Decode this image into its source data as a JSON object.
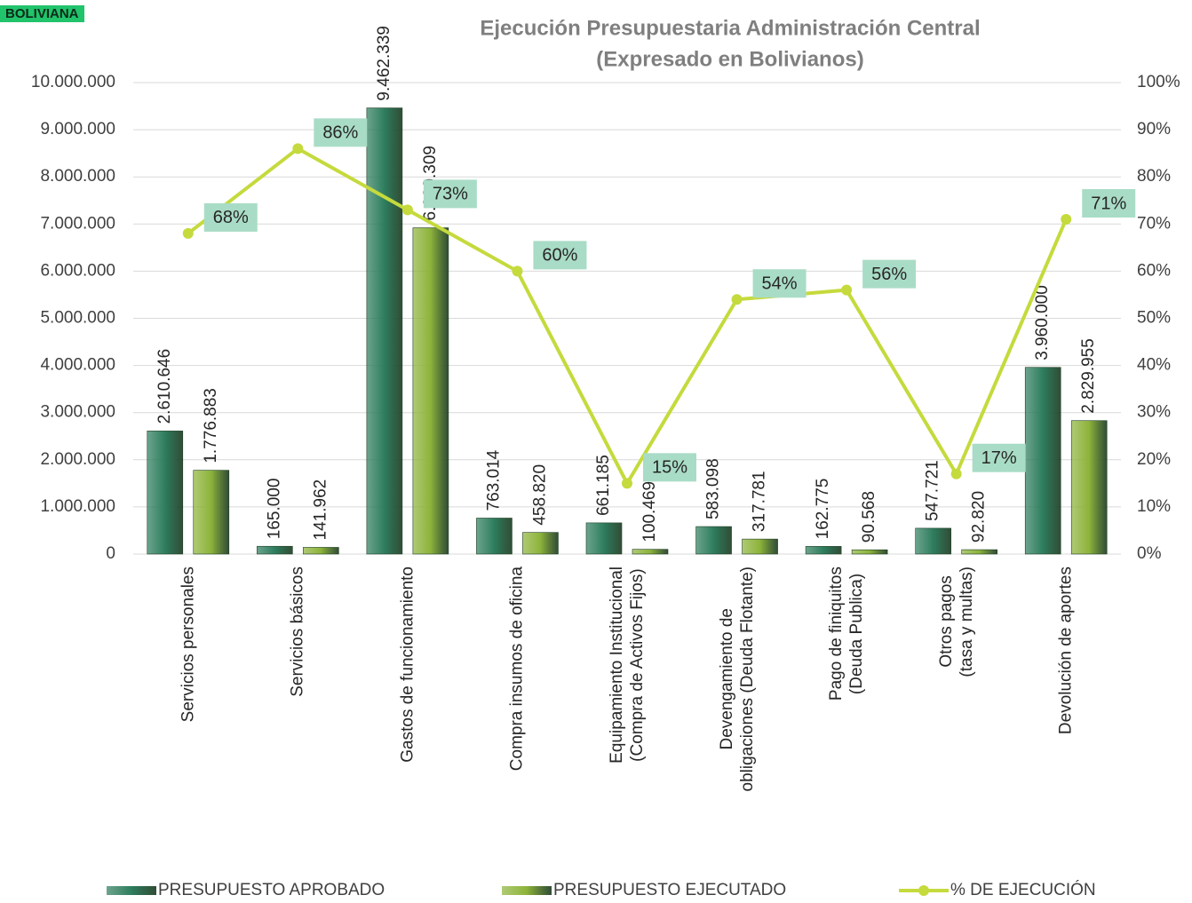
{
  "header": {
    "label": "BOLIVIANA"
  },
  "chart_data": {
    "type": "bar",
    "title": "Ejecución Presupuestaria Administración Central",
    "subtitle": "(Expresado en Bolivianos)",
    "categories": [
      "Servicios personales",
      "Servicios básicos",
      "Gastos de funcionamiento",
      "Compra insumos de oficina",
      "Equipamiento Institucional\n(Compra de Activos Fijos)",
      "Devengamiento de\nobligaciones (Deuda Flotante)",
      "Pago de finiquitos\n(Deuda Publica)",
      "Otros pagos\n(tasa y multas)",
      "Devolución de aportes"
    ],
    "series": [
      {
        "name": "PRESUPUESTO APROBADO",
        "type": "bar",
        "color": "#2e7d5e",
        "values": [
          2610646,
          165000,
          9462339,
          763014,
          661185,
          583098,
          162775,
          547721,
          3960000
        ],
        "value_labels": [
          "2.610.646",
          "165.000",
          "9.462.339",
          "763.014",
          "661.185",
          "583.098",
          "162.775",
          "547.721",
          "3.960.000"
        ]
      },
      {
        "name": "PRESUPUESTO EJECUTADO",
        "type": "bar",
        "color": "#8db33a",
        "values": [
          1776883,
          141962,
          6920309,
          458820,
          100469,
          317781,
          90568,
          92820,
          2829955
        ],
        "value_labels": [
          "1.776.883",
          "141.962",
          "6.920.309",
          "458.820",
          "100.469",
          "317.781",
          "90.568",
          "92.820",
          "2.829.955"
        ]
      },
      {
        "name": "% DE EJECUCIÓN",
        "type": "line",
        "axis": "y2",
        "color": "#c5da3c",
        "values": [
          68,
          86,
          73,
          60,
          15,
          54,
          56,
          17,
          71
        ],
        "value_labels": [
          "68%",
          "86%",
          "73%",
          "60%",
          "15%",
          "54%",
          "56%",
          "17%",
          "71%"
        ]
      }
    ],
    "ylim": [
      0,
      10000000
    ],
    "yticks": [
      0,
      {
        "value": 1000000,
        "label": "1.000.000"
      },
      {
        "value": 2000000,
        "label": "2.000.000"
      },
      {
        "value": 3000000,
        "label": "3.000.000"
      },
      {
        "value": 4000000,
        "label": "4.000.000"
      },
      {
        "value": 5000000,
        "label": "5.000.000"
      },
      {
        "value": 6000000,
        "label": "6.000.000"
      },
      {
        "value": 7000000,
        "label": "7.000.000"
      },
      {
        "value": 8000000,
        "label": "8.000.000"
      },
      {
        "value": 9000000,
        "label": "9.000.000"
      },
      {
        "value": 10000000,
        "label": "10.000.000"
      }
    ],
    "y2lim": [
      0,
      100
    ],
    "y2ticks": [
      {
        "value": 0,
        "label": "0%"
      },
      {
        "value": 10,
        "label": "10%"
      },
      {
        "value": 20,
        "label": "20%"
      },
      {
        "value": 30,
        "label": "30%"
      },
      {
        "value": 40,
        "label": "40%"
      },
      {
        "value": 50,
        "label": "50%"
      },
      {
        "value": 60,
        "label": "60%"
      },
      {
        "value": 70,
        "label": "70%"
      },
      {
        "value": 80,
        "label": "80%"
      },
      {
        "value": 90,
        "label": "90%"
      },
      {
        "value": 100,
        "label": "100%"
      }
    ],
    "grid": true,
    "legend": "bottom"
  }
}
